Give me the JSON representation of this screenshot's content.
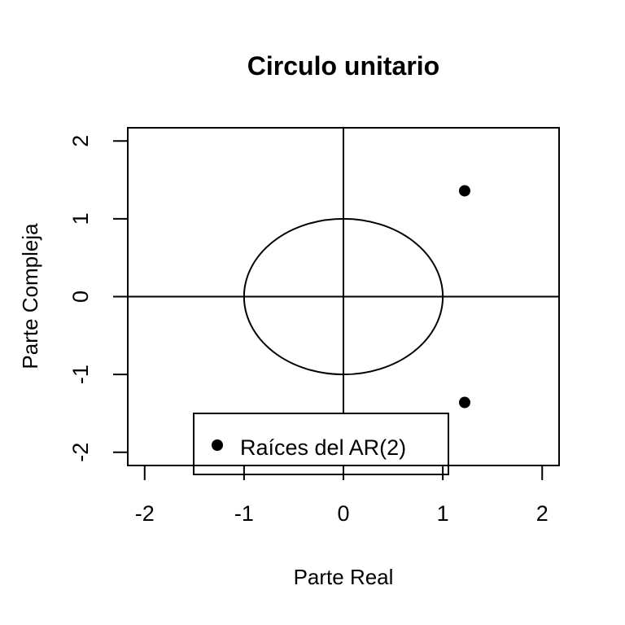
{
  "chart_data": {
    "type": "scatter",
    "title": "Circulo unitario",
    "xlabel": "Parte Real",
    "ylabel": "Parte Compleja",
    "xlim": [
      -2.17,
      2.17
    ],
    "ylim": [
      -2.17,
      2.17
    ],
    "x_ticks": [
      -2,
      -1,
      0,
      1,
      2
    ],
    "y_ticks": [
      -2,
      -1,
      0,
      1,
      2
    ],
    "reference_lines": {
      "x": 0,
      "y": 0
    },
    "unit_circle": {
      "center": [
        0,
        0
      ],
      "radius": 1
    },
    "series": [
      {
        "name": "Raíces del AR(2)",
        "points": [
          {
            "x": 1.22,
            "y": 1.36
          },
          {
            "x": 1.22,
            "y": -1.36
          }
        ],
        "color": "#000000",
        "marker": "filled-circle"
      }
    ],
    "legend": {
      "position": "bottom",
      "entries": [
        "Raíces del AR(2)"
      ]
    },
    "grid": false
  }
}
